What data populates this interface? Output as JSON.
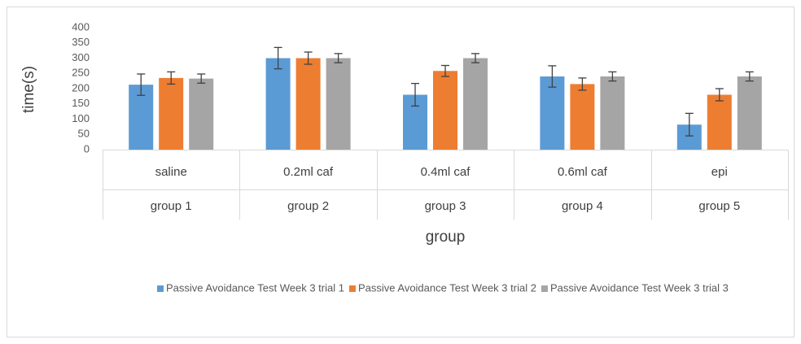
{
  "chart_data": {
    "type": "bar",
    "categories": [
      "saline",
      "0.2ml caf",
      "0.4ml caf",
      "0.6ml caf",
      "epi"
    ],
    "category_groups": [
      "group 1",
      "group 2",
      "group 3",
      "group 4",
      "group 5"
    ],
    "x_label": "group",
    "y_label": "time(s)",
    "series": [
      {
        "name": "Passive Avoidance Test Week 3 trial 1",
        "color": "#5b9bd5",
        "values": [
          213,
          300,
          180,
          240,
          82
        ],
        "errors": [
          35,
          35,
          37,
          35,
          37
        ]
      },
      {
        "name": "Passive Avoidance Test Week 3 trial 2",
        "color": "#ed7d31",
        "values": [
          235,
          300,
          258,
          215,
          180
        ],
        "errors": [
          20,
          20,
          18,
          20,
          20
        ]
      },
      {
        "name": "Passive Avoidance Test Week 3 trial 3",
        "color": "#a5a5a5",
        "values": [
          233,
          300,
          300,
          240,
          240
        ],
        "errors": [
          15,
          15,
          15,
          15,
          15
        ]
      }
    ],
    "ylim": [
      0,
      400
    ],
    "yticks": [
      0,
      50,
      100,
      150,
      200,
      250,
      300,
      350,
      400
    ],
    "grid": false
  }
}
